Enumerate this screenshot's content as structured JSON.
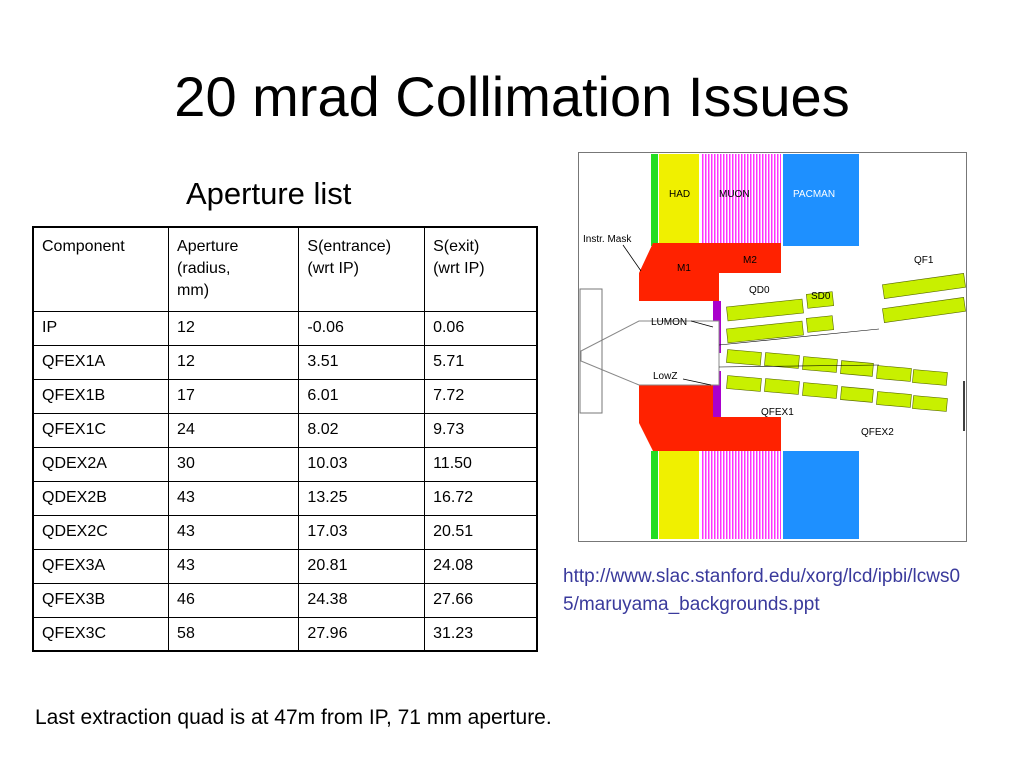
{
  "slide": {
    "title": "20 mrad Collimation Issues",
    "subtitle": "Aperture list",
    "url": "http://www.slac.stanford.edu/xorg/lcd/ipbi/lcws05/maruyama_backgrounds.ppt",
    "footnote": "Last extraction quad is at 47m from IP, 71 mm aperture."
  },
  "table": {
    "headers": [
      [
        "Component"
      ],
      [
        "Aperture",
        "(radius,",
        "mm)"
      ],
      [
        "S(entrance)",
        "(wrt IP)"
      ],
      [
        "S(exit)",
        "(wrt IP)"
      ]
    ],
    "rows": [
      [
        "IP",
        "12",
        "-0.06",
        "0.06"
      ],
      [
        "QFEX1A",
        "12",
        "3.51",
        "5.71"
      ],
      [
        "QFEX1B",
        "17",
        "6.01",
        "7.72"
      ],
      [
        "QFEX1C",
        "24",
        "8.02",
        "9.73"
      ],
      [
        "QDEX2A",
        "30",
        "10.03",
        "11.50"
      ],
      [
        "QDEX2B",
        "43",
        "13.25",
        "16.72"
      ],
      [
        "QDEX2C",
        "43",
        "17.03",
        "20.51"
      ],
      [
        "QFEX3A",
        "43",
        "20.81",
        "24.08"
      ],
      [
        "QFEX3B",
        "46",
        "24.38",
        "27.66"
      ],
      [
        "QFEX3C",
        "58",
        "27.96",
        "31.23"
      ]
    ]
  },
  "diagram": {
    "labels": {
      "had": "HAD",
      "muon": "MUON",
      "pacman": "PACMAN",
      "instr_mask": "Instr. Mask",
      "m1": "M1",
      "m2": "M2",
      "qd0": "QD0",
      "sd0": "SD0",
      "qf1": "QF1",
      "lumon": "LUMON",
      "lowz": "LowZ",
      "qfex1": "QFEX1",
      "qfex2": "QFEX2"
    },
    "colors": {
      "green_bar": "#22dd22",
      "had": "#f0f000",
      "muon": "#ff66ff",
      "pacman": "#1e90ff",
      "mask": "#ff2200",
      "magnet": "#c8f000",
      "lumon": "#aa00cc"
    }
  }
}
